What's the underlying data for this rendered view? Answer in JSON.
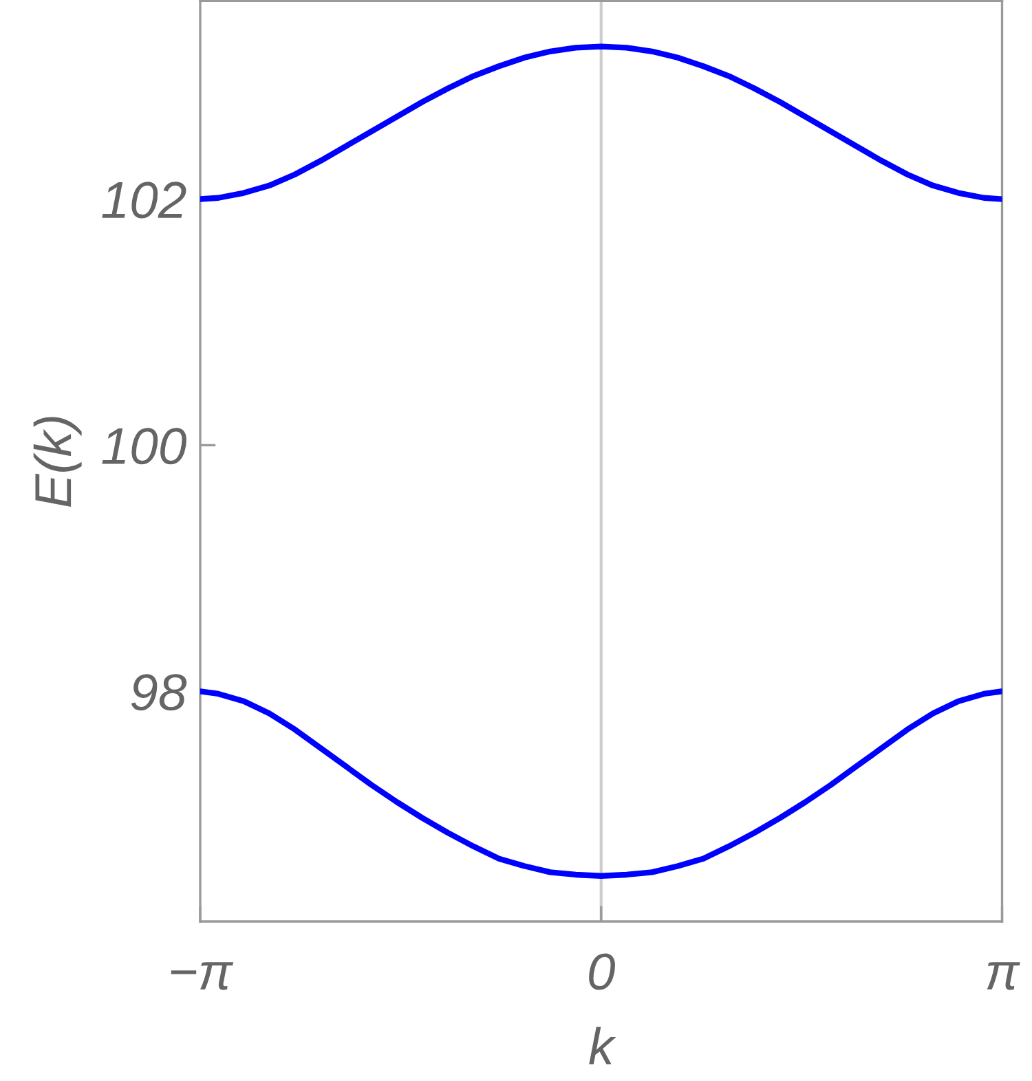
{
  "chart_data": {
    "type": "line",
    "xlabel": "k",
    "ylabel": "E(k)",
    "x": [
      -3.1416,
      -3.0,
      -2.8,
      -2.6,
      -2.4,
      -2.2,
      -2.0,
      -1.8,
      -1.6,
      -1.4,
      -1.2,
      -1.0,
      -0.8,
      -0.6,
      -0.4,
      -0.2,
      0,
      0.2,
      0.4,
      0.6,
      0.8,
      1.0,
      1.2,
      1.4,
      1.6,
      1.8,
      2.0,
      2.2,
      2.4,
      2.6,
      2.8,
      3.0,
      3.1416
    ],
    "series": [
      {
        "color": "#0000ff",
        "values": [
          102.0,
          102.01,
          102.05,
          102.11,
          102.2,
          102.31,
          102.43,
          102.55,
          102.67,
          102.79,
          102.9,
          103.0,
          103.08,
          103.15,
          103.2,
          103.23,
          103.24,
          103.23,
          103.2,
          103.15,
          103.08,
          103.0,
          102.9,
          102.79,
          102.67,
          102.55,
          102.43,
          102.31,
          102.2,
          102.11,
          102.05,
          102.01,
          102.0
        ]
      },
      {
        "color": "#0000ff",
        "values": [
          98.0,
          97.98,
          97.92,
          97.82,
          97.69,
          97.54,
          97.39,
          97.24,
          97.1,
          96.97,
          96.85,
          96.74,
          96.64,
          96.58,
          96.53,
          96.51,
          96.5,
          96.51,
          96.53,
          96.58,
          96.64,
          96.74,
          96.85,
          96.97,
          97.1,
          97.24,
          97.39,
          97.54,
          97.69,
          97.82,
          97.92,
          97.98,
          98.0
        ]
      }
    ],
    "xlim": [
      -3.1416,
      3.1416
    ],
    "ylim": [
      96.13,
      103.61
    ],
    "xticks": [
      {
        "value": -3.1416,
        "label": "−π"
      },
      0,
      {
        "value": 3.1416,
        "label": "π"
      }
    ],
    "yticks": [
      98,
      100,
      102
    ],
    "ref_lines": [
      {
        "axis": "x",
        "value": 0,
        "color": "#cccccc"
      }
    ],
    "line_style": "solid"
  }
}
